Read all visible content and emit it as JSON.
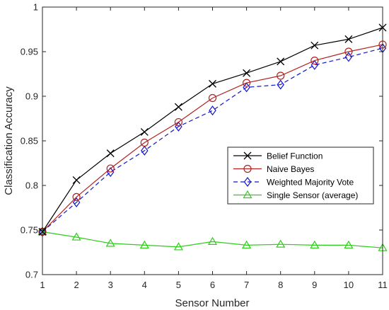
{
  "chart_data": {
    "type": "line",
    "title": "",
    "xlabel": "Sensor Number",
    "ylabel": "Classification Accuracy",
    "xlim": [
      1,
      11
    ],
    "ylim": [
      0.7,
      1.0
    ],
    "xticks": [
      1,
      2,
      3,
      4,
      5,
      6,
      7,
      8,
      9,
      10,
      11
    ],
    "yticks": [
      0.7,
      0.75,
      0.8,
      0.85,
      0.9,
      0.95,
      1.0
    ],
    "xtick_labels": [
      "1",
      "2",
      "3",
      "4",
      "5",
      "6",
      "7",
      "8",
      "9",
      "10",
      "11"
    ],
    "ytick_labels": [
      "0.7",
      "0.75",
      "0.8",
      "0.85",
      "0.9",
      "0.95",
      "1"
    ],
    "grid": false,
    "legend_position": "lower-right",
    "x": [
      1,
      2,
      3,
      4,
      5,
      6,
      7,
      8,
      9,
      10,
      11
    ],
    "series": [
      {
        "name": "Belief Function",
        "marker": "x",
        "color": "#000000",
        "dash": "solid",
        "values": [
          0.748,
          0.806,
          0.836,
          0.86,
          0.888,
          0.914,
          0.926,
          0.939,
          0.957,
          0.964,
          0.977
        ]
      },
      {
        "name": "Naive Bayes",
        "marker": "circle",
        "color": "#b22222",
        "dash": "solid",
        "values": [
          0.748,
          0.787,
          0.819,
          0.848,
          0.871,
          0.898,
          0.915,
          0.923,
          0.94,
          0.95,
          0.958
        ]
      },
      {
        "name": "Weighted Majority Vote",
        "marker": "diamond",
        "color": "#1515c8",
        "dash": "dashed",
        "values": [
          0.748,
          0.781,
          0.815,
          0.839,
          0.866,
          0.884,
          0.91,
          0.913,
          0.935,
          0.944,
          0.954
        ]
      },
      {
        "name": "Single Sensor (average)",
        "marker": "triangle",
        "color": "#2ecc1a",
        "dash": "solid",
        "values": [
          0.748,
          0.742,
          0.735,
          0.733,
          0.731,
          0.737,
          0.733,
          0.734,
          0.733,
          0.733,
          0.73
        ]
      }
    ]
  }
}
